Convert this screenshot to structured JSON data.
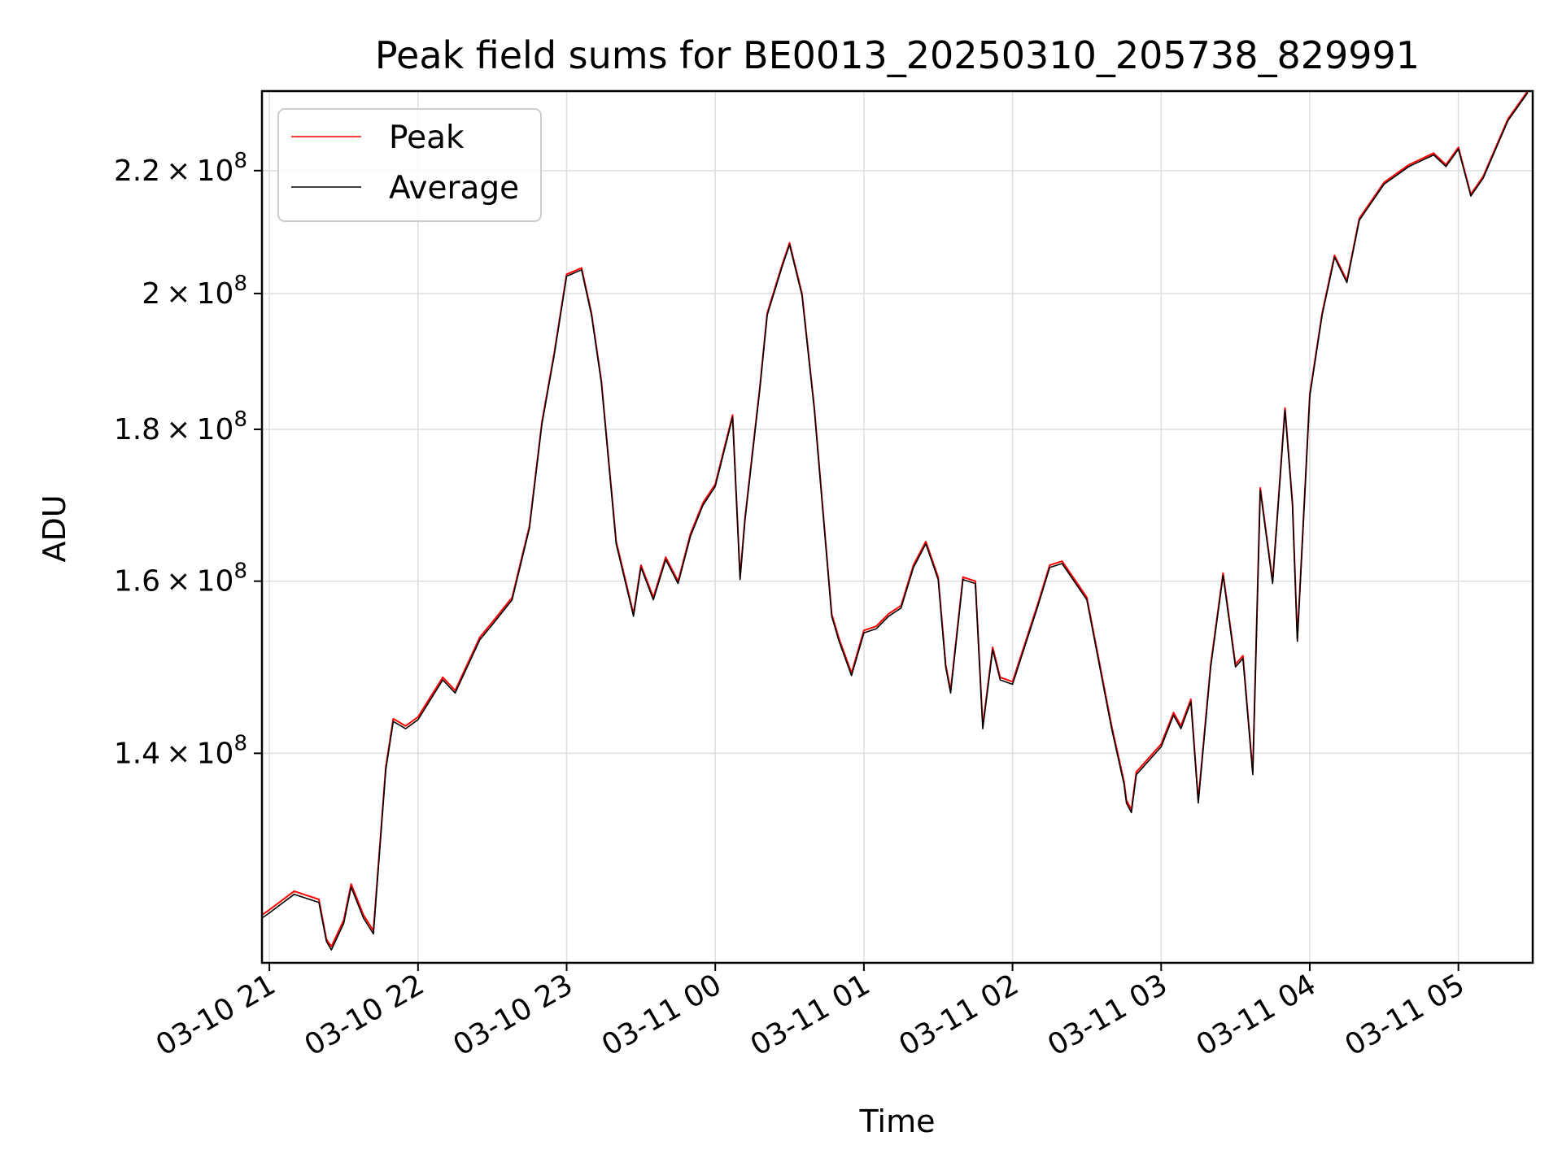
{
  "chart_data": {
    "type": "line",
    "title": "Peak field sums for BE0013_20250310_205738_829991",
    "xlabel": "Time",
    "ylabel": "ADU",
    "yscale": "log",
    "xlim": [
      "2025-03-10 20:57",
      "2025-03-11 05:30"
    ],
    "ylim": [
      119000000,
      234000000
    ],
    "grid": true,
    "legend_location": "upper left",
    "x_ticks": [
      "03-10 21",
      "03-10 22",
      "03-10 23",
      "03-11 00",
      "03-11 01",
      "03-11 02",
      "03-11 03",
      "03-11 04",
      "03-11 05"
    ],
    "y_ticks": [
      {
        "value": 140000000,
        "mantissa": "1.4",
        "exp": "8"
      },
      {
        "value": 160000000,
        "mantissa": "1.6",
        "exp": "8"
      },
      {
        "value": 180000000,
        "mantissa": "1.8",
        "exp": "8"
      },
      {
        "value": 200000000,
        "mantissa": "2",
        "exp": "8"
      },
      {
        "value": 220000000,
        "mantissa": "2.2",
        "exp": "8"
      }
    ],
    "x_times": [
      "2025-03-10 20:57",
      "2025-03-10 21:00",
      "2025-03-10 21:10",
      "2025-03-10 21:20",
      "2025-03-10 21:23",
      "2025-03-10 21:25",
      "2025-03-10 21:30",
      "2025-03-10 21:33",
      "2025-03-10 21:38",
      "2025-03-10 21:42",
      "2025-03-10 21:47",
      "2025-03-10 21:50",
      "2025-03-10 21:55",
      "2025-03-10 22:00",
      "2025-03-10 22:10",
      "2025-03-10 22:15",
      "2025-03-10 22:25",
      "2025-03-10 22:30",
      "2025-03-10 22:38",
      "2025-03-10 22:45",
      "2025-03-10 22:50",
      "2025-03-10 22:55",
      "2025-03-10 23:00",
      "2025-03-10 23:06",
      "2025-03-10 23:10",
      "2025-03-10 23:14",
      "2025-03-10 23:20",
      "2025-03-10 23:27",
      "2025-03-10 23:30",
      "2025-03-10 23:35",
      "2025-03-10 23:40",
      "2025-03-10 23:45",
      "2025-03-10 23:50",
      "2025-03-10 23:55",
      "2025-03-11 00:00",
      "2025-03-11 00:07",
      "2025-03-11 00:10",
      "2025-03-11 00:12",
      "2025-03-11 00:18",
      "2025-03-11 00:21",
      "2025-03-11 00:27",
      "2025-03-11 00:30",
      "2025-03-11 00:35",
      "2025-03-11 00:40",
      "2025-03-11 00:44",
      "2025-03-11 00:47",
      "2025-03-11 00:50",
      "2025-03-11 00:55",
      "2025-03-11 01:00",
      "2025-03-11 01:05",
      "2025-03-11 01:10",
      "2025-03-11 01:15",
      "2025-03-11 01:20",
      "2025-03-11 01:25",
      "2025-03-11 01:30",
      "2025-03-11 01:33",
      "2025-03-11 01:35",
      "2025-03-11 01:40",
      "2025-03-11 01:45",
      "2025-03-11 01:48",
      "2025-03-11 01:52",
      "2025-03-11 01:55",
      "2025-03-11 02:00",
      "2025-03-11 02:10",
      "2025-03-11 02:15",
      "2025-03-11 02:20",
      "2025-03-11 02:30",
      "2025-03-11 02:40",
      "2025-03-11 02:45",
      "2025-03-11 02:46",
      "2025-03-11 02:48",
      "2025-03-11 02:50",
      "2025-03-11 03:00",
      "2025-03-11 03:05",
      "2025-03-11 03:08",
      "2025-03-11 03:12",
      "2025-03-11 03:15",
      "2025-03-11 03:20",
      "2025-03-11 03:25",
      "2025-03-11 03:30",
      "2025-03-11 03:33",
      "2025-03-11 03:37",
      "2025-03-11 03:40",
      "2025-03-11 03:45",
      "2025-03-11 03:50",
      "2025-03-11 03:53",
      "2025-03-11 03:55",
      "2025-03-11 04:00",
      "2025-03-11 04:05",
      "2025-03-11 04:10",
      "2025-03-11 04:15",
      "2025-03-11 04:20",
      "2025-03-11 04:30",
      "2025-03-11 04:40",
      "2025-03-11 04:50",
      "2025-03-11 04:55",
      "2025-03-11 05:00",
      "2025-03-11 05:05",
      "2025-03-11 05:10",
      "2025-03-11 05:20",
      "2025-03-11 05:28"
    ],
    "series": [
      {
        "name": "Peak",
        "color": "#ff0000",
        "values": [
          123500000,
          124000000,
          125800000,
          125000000,
          121200000,
          120500000,
          123000000,
          126500000,
          123500000,
          122000000,
          138500000,
          143800000,
          143000000,
          144000000,
          148500000,
          147000000,
          153200000,
          155000000,
          158000000,
          167000000,
          181000000,
          191000000,
          203000000,
          204000000,
          197000000,
          187000000,
          165000000,
          156000000,
          162000000,
          158000000,
          163000000,
          160000000,
          166000000,
          170000000,
          172500000,
          182000000,
          160500000,
          168000000,
          186000000,
          197000000,
          204500000,
          208000000,
          200000000,
          183000000,
          167000000,
          156000000,
          153000000,
          149000000,
          154000000,
          154500000,
          156000000,
          157000000,
          162000000,
          165000000,
          160500000,
          150000000,
          147000000,
          160500000,
          160000000,
          143000000,
          152000000,
          148500000,
          148000000,
          157000000,
          162000000,
          162500000,
          158000000,
          143000000,
          137000000,
          135000000,
          134000000,
          138000000,
          141000000,
          144500000,
          143000000,
          146000000,
          135000000,
          150000000,
          161000000,
          150000000,
          151000000,
          138000000,
          172000000,
          160000000,
          183000000,
          170000000,
          153000000,
          185000000,
          197000000,
          206000000,
          202000000,
          212000000,
          218000000,
          221000000,
          223000000,
          221000000,
          224000000,
          216000000,
          219000000,
          229000000,
          234000000
        ]
      },
      {
        "name": "Average",
        "color": "#000000",
        "values": [
          123200000,
          123700000,
          125500000,
          124700000,
          121000000,
          120200000,
          122700000,
          126200000,
          123200000,
          121700000,
          138200000,
          143500000,
          142700000,
          143700000,
          148200000,
          146700000,
          152900000,
          154700000,
          157700000,
          166700000,
          180700000,
          190700000,
          202700000,
          203700000,
          196700000,
          186700000,
          164700000,
          155700000,
          161700000,
          157700000,
          162700000,
          159700000,
          165700000,
          169700000,
          172200000,
          181700000,
          160200000,
          167700000,
          185700000,
          196700000,
          204200000,
          207700000,
          199700000,
          182700000,
          166700000,
          155700000,
          152700000,
          148700000,
          153700000,
          154200000,
          155700000,
          156700000,
          161700000,
          164700000,
          160200000,
          149700000,
          146700000,
          160200000,
          159700000,
          142700000,
          151700000,
          148200000,
          147700000,
          156700000,
          161700000,
          162200000,
          157700000,
          142700000,
          136700000,
          134700000,
          133700000,
          137700000,
          140700000,
          144200000,
          142700000,
          145700000,
          134700000,
          149700000,
          160700000,
          149700000,
          150700000,
          137700000,
          171700000,
          159700000,
          182700000,
          169700000,
          152700000,
          184700000,
          196700000,
          205700000,
          201700000,
          211700000,
          217700000,
          220700000,
          222700000,
          220700000,
          223700000,
          215700000,
          218700000,
          228700000,
          233700000
        ]
      }
    ]
  }
}
